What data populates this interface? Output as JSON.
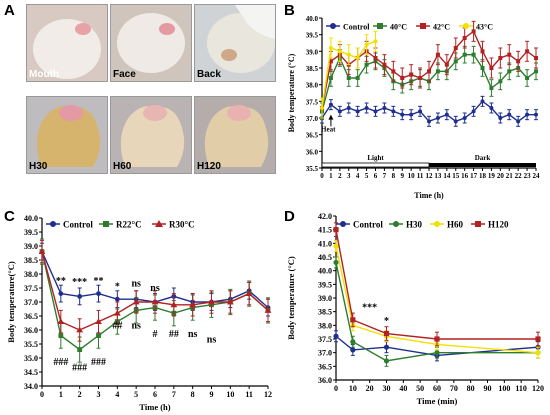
{
  "panel_letters": [
    "A",
    "B",
    "C",
    "D"
  ],
  "photos": [
    {
      "label": "Mouth",
      "bg": "#d8c9c2",
      "body": "#f1ece7",
      "accent": "#e8a2a6",
      "text": "light"
    },
    {
      "label": "Face",
      "bg": "#cfc5bd",
      "body": "#efeae6",
      "accent": "#e49aa0",
      "text": "dark"
    },
    {
      "label": "Back",
      "bg": "#cfd3d6",
      "body": "#e9e6de",
      "accent": "#cfa88a",
      "text": "dark"
    },
    {
      "label": "H30",
      "bg": "#bfbcc0",
      "body": "#d6b46e",
      "accent": "#e39aa4",
      "text": "dark"
    },
    {
      "label": "H60",
      "bg": "#b9b3b3",
      "body": "#e8d6ba",
      "accent": "#e8b6b2",
      "text": "dark"
    },
    {
      "label": "H120",
      "bg": "#b4adab",
      "body": "#e1cda8",
      "accent": "#e9b2b0",
      "text": "dark"
    }
  ],
  "chart_data": [
    {
      "panel": "B",
      "type": "line",
      "xlabel": "Time (h)",
      "ylabel": "Body temperature (°C)",
      "xlim": [
        0,
        24
      ],
      "ylim": [
        35.5,
        40.0
      ],
      "yticks": [
        "35.5",
        "36.0",
        "36.5",
        "37.0",
        "37.5",
        "38.0",
        "38.5",
        "39.0",
        "39.5",
        "40.0"
      ],
      "xticks": [
        "0",
        "1",
        "2",
        "3",
        "4",
        "5",
        "6",
        "7",
        "8",
        "9",
        "10",
        "11",
        "12",
        "13",
        "14",
        "15",
        "16",
        "17",
        "18",
        "19",
        "20",
        "21",
        "22",
        "23",
        "24"
      ],
      "annotations": {
        "heat": "Heat",
        "light": "Light",
        "dark": "Dark"
      },
      "series": [
        {
          "name": "Control",
          "color": "#1f2f8f",
          "marker": "circle",
          "x": [
            0,
            1,
            2,
            3,
            4,
            5,
            6,
            7,
            8,
            9,
            10,
            11,
            12,
            13,
            14,
            15,
            16,
            17,
            18,
            19,
            20,
            21,
            22,
            23,
            24
          ],
          "y": [
            37.0,
            37.4,
            37.2,
            37.3,
            37.2,
            37.3,
            37.2,
            37.3,
            37.2,
            37.1,
            37.1,
            37.2,
            36.9,
            37.0,
            37.1,
            36.9,
            37.0,
            37.2,
            37.5,
            37.3,
            37.0,
            37.1,
            36.9,
            37.1,
            37.1
          ],
          "err": 0.15
        },
        {
          "name": "40°C",
          "color": "#2e7d2e",
          "marker": "square",
          "x": [
            0,
            1,
            2,
            3,
            4,
            5,
            6,
            7,
            8,
            9,
            10,
            11,
            12,
            13,
            14,
            15,
            16,
            17,
            18,
            19,
            20,
            21,
            22,
            23,
            24
          ],
          "y": [
            37.2,
            38.2,
            38.8,
            38.2,
            38.2,
            38.6,
            38.7,
            38.5,
            38.1,
            38.0,
            38.1,
            38.2,
            38.1,
            38.4,
            38.4,
            38.7,
            38.9,
            38.9,
            38.5,
            37.9,
            38.1,
            38.4,
            38.5,
            38.2,
            38.4
          ],
          "err": 0.25
        },
        {
          "name": "42°C",
          "color": "#b22222",
          "marker": "square",
          "x": [
            0,
            1,
            2,
            3,
            4,
            5,
            6,
            7,
            8,
            9,
            10,
            11,
            12,
            13,
            14,
            15,
            16,
            17,
            18,
            19,
            20,
            21,
            22,
            23,
            24
          ],
          "y": [
            37.3,
            38.7,
            38.9,
            38.6,
            38.8,
            39.0,
            38.8,
            38.6,
            38.4,
            38.2,
            38.3,
            38.2,
            38.4,
            38.9,
            38.6,
            39.1,
            39.4,
            39.6,
            39.0,
            38.5,
            38.8,
            38.9,
            38.7,
            39.0,
            38.8
          ],
          "err": 0.3
        },
        {
          "name": "43°C",
          "color": "#f2e000",
          "marker": "circle",
          "x": [
            0,
            1,
            2,
            3,
            4,
            5,
            6
          ],
          "y": [
            37.3,
            39.1,
            39.0,
            38.9,
            38.8,
            39.2,
            39.3
          ],
          "err": 0.3
        }
      ]
    },
    {
      "panel": "C",
      "type": "line",
      "xlabel": "Time (h)",
      "ylabel": "Body temperature(°C)",
      "xlim": [
        0,
        12
      ],
      "ylim": [
        34.0,
        40.0
      ],
      "yticks": [
        "34.0",
        "34.5",
        "35.0",
        "35.5",
        "36.0",
        "36.5",
        "37.0",
        "37.5",
        "38.0",
        "38.5",
        "39.0",
        "39.5",
        "40.0"
      ],
      "xticks": [
        "0",
        "1",
        "2",
        "3",
        "4",
        "5",
        "6",
        "7",
        "8",
        "9",
        "10",
        "11",
        "12"
      ],
      "series": [
        {
          "name": "Control",
          "color": "#1f2f8f",
          "marker": "circle",
          "x": [
            0,
            1,
            2,
            3,
            4,
            5,
            6,
            7,
            8,
            9,
            10,
            11,
            12
          ],
          "y": [
            38.8,
            37.3,
            37.2,
            37.3,
            37.1,
            37.1,
            37.0,
            37.2,
            37.0,
            37.0,
            37.1,
            37.4,
            36.8
          ],
          "err": 0.3
        },
        {
          "name": "R22°C",
          "color": "#2e7d2e",
          "marker": "square",
          "x": [
            0,
            1,
            2,
            3,
            4,
            5,
            6,
            7,
            8,
            9,
            10,
            11,
            12
          ],
          "y": [
            38.8,
            35.8,
            35.3,
            35.8,
            36.3,
            36.7,
            36.8,
            36.6,
            36.8,
            36.9,
            37.0,
            37.3,
            36.7
          ],
          "err": 0.45
        },
        {
          "name": "R30°C",
          "color": "#b22222",
          "marker": "triangle",
          "x": [
            0,
            1,
            2,
            3,
            4,
            5,
            6,
            7,
            8,
            9,
            10,
            11,
            12
          ],
          "y": [
            38.8,
            36.3,
            36.0,
            36.3,
            36.6,
            37.0,
            37.0,
            36.9,
            36.9,
            37.0,
            37.0,
            37.3,
            36.7
          ],
          "err": 0.4
        }
      ],
      "annotations": [
        {
          "text": "**",
          "x": 1,
          "y": 37.65
        },
        {
          "text": "***",
          "x": 2,
          "y": 37.6
        },
        {
          "text": "**",
          "x": 3,
          "y": 37.65
        },
        {
          "text": "*",
          "x": 4,
          "y": 37.45
        },
        {
          "text": "ns",
          "x": 5,
          "y": 37.55
        },
        {
          "text": "ns",
          "x": 6,
          "y": 37.4
        },
        {
          "text": "ns",
          "x": 5,
          "y": 36.05
        },
        {
          "text": "#",
          "x": 6,
          "y": 35.75
        },
        {
          "text": "##",
          "x": 7,
          "y": 35.75
        },
        {
          "text": "ns",
          "x": 8,
          "y": 35.75
        },
        {
          "text": "ns",
          "x": 9,
          "y": 35.55
        },
        {
          "text": "##",
          "x": 4,
          "y": 36.05
        },
        {
          "text": "###",
          "x": 1,
          "y": 34.75
        },
        {
          "text": "###",
          "x": 2,
          "y": 34.55
        },
        {
          "text": "###",
          "x": 3,
          "y": 34.75
        }
      ]
    },
    {
      "panel": "D",
      "type": "line",
      "xlabel": "Time (min)",
      "ylabel": "Body temperature (°C)",
      "xlim": [
        0,
        120
      ],
      "ylim": [
        36.0,
        42.0
      ],
      "yticks": [
        "36.0",
        "36.5",
        "37.0",
        "37.5",
        "38.0",
        "38.5",
        "39.0",
        "39.5",
        "40.0",
        "40.5",
        "41.0",
        "41.5",
        "42.0"
      ],
      "xticks": [
        "0",
        "10",
        "20",
        "30",
        "40",
        "50",
        "60",
        "70",
        "80",
        "90",
        "100",
        "110",
        "120"
      ],
      "series": [
        {
          "name": "Control",
          "color": "#1f2f8f",
          "marker": "circle",
          "x": [
            0,
            10,
            30,
            60,
            120
          ],
          "y": [
            37.6,
            37.1,
            37.2,
            36.9,
            37.2
          ],
          "err": 0.2
        },
        {
          "name": "H30",
          "color": "#2e7d2e",
          "marker": "circle",
          "x": [
            0,
            10,
            30,
            60,
            120
          ],
          "y": [
            40.3,
            37.4,
            36.7,
            37.0,
            37.0
          ],
          "err": 0.2
        },
        {
          "name": "H60",
          "color": "#f2e000",
          "marker": "circle",
          "x": [
            0,
            10,
            30,
            60,
            120
          ],
          "y": [
            40.9,
            38.0,
            37.6,
            37.3,
            37.0
          ],
          "err": 0.2
        },
        {
          "name": "H120",
          "color": "#b22222",
          "marker": "square",
          "x": [
            0,
            10,
            30,
            60,
            120
          ],
          "y": [
            41.5,
            38.2,
            37.7,
            37.5,
            37.5
          ],
          "err": 0.25
        }
      ],
      "annotations": [
        {
          "text": "***",
          "x": 20,
          "y": 38.55
        },
        {
          "text": "*",
          "x": 30,
          "y": 38.05
        }
      ]
    }
  ]
}
